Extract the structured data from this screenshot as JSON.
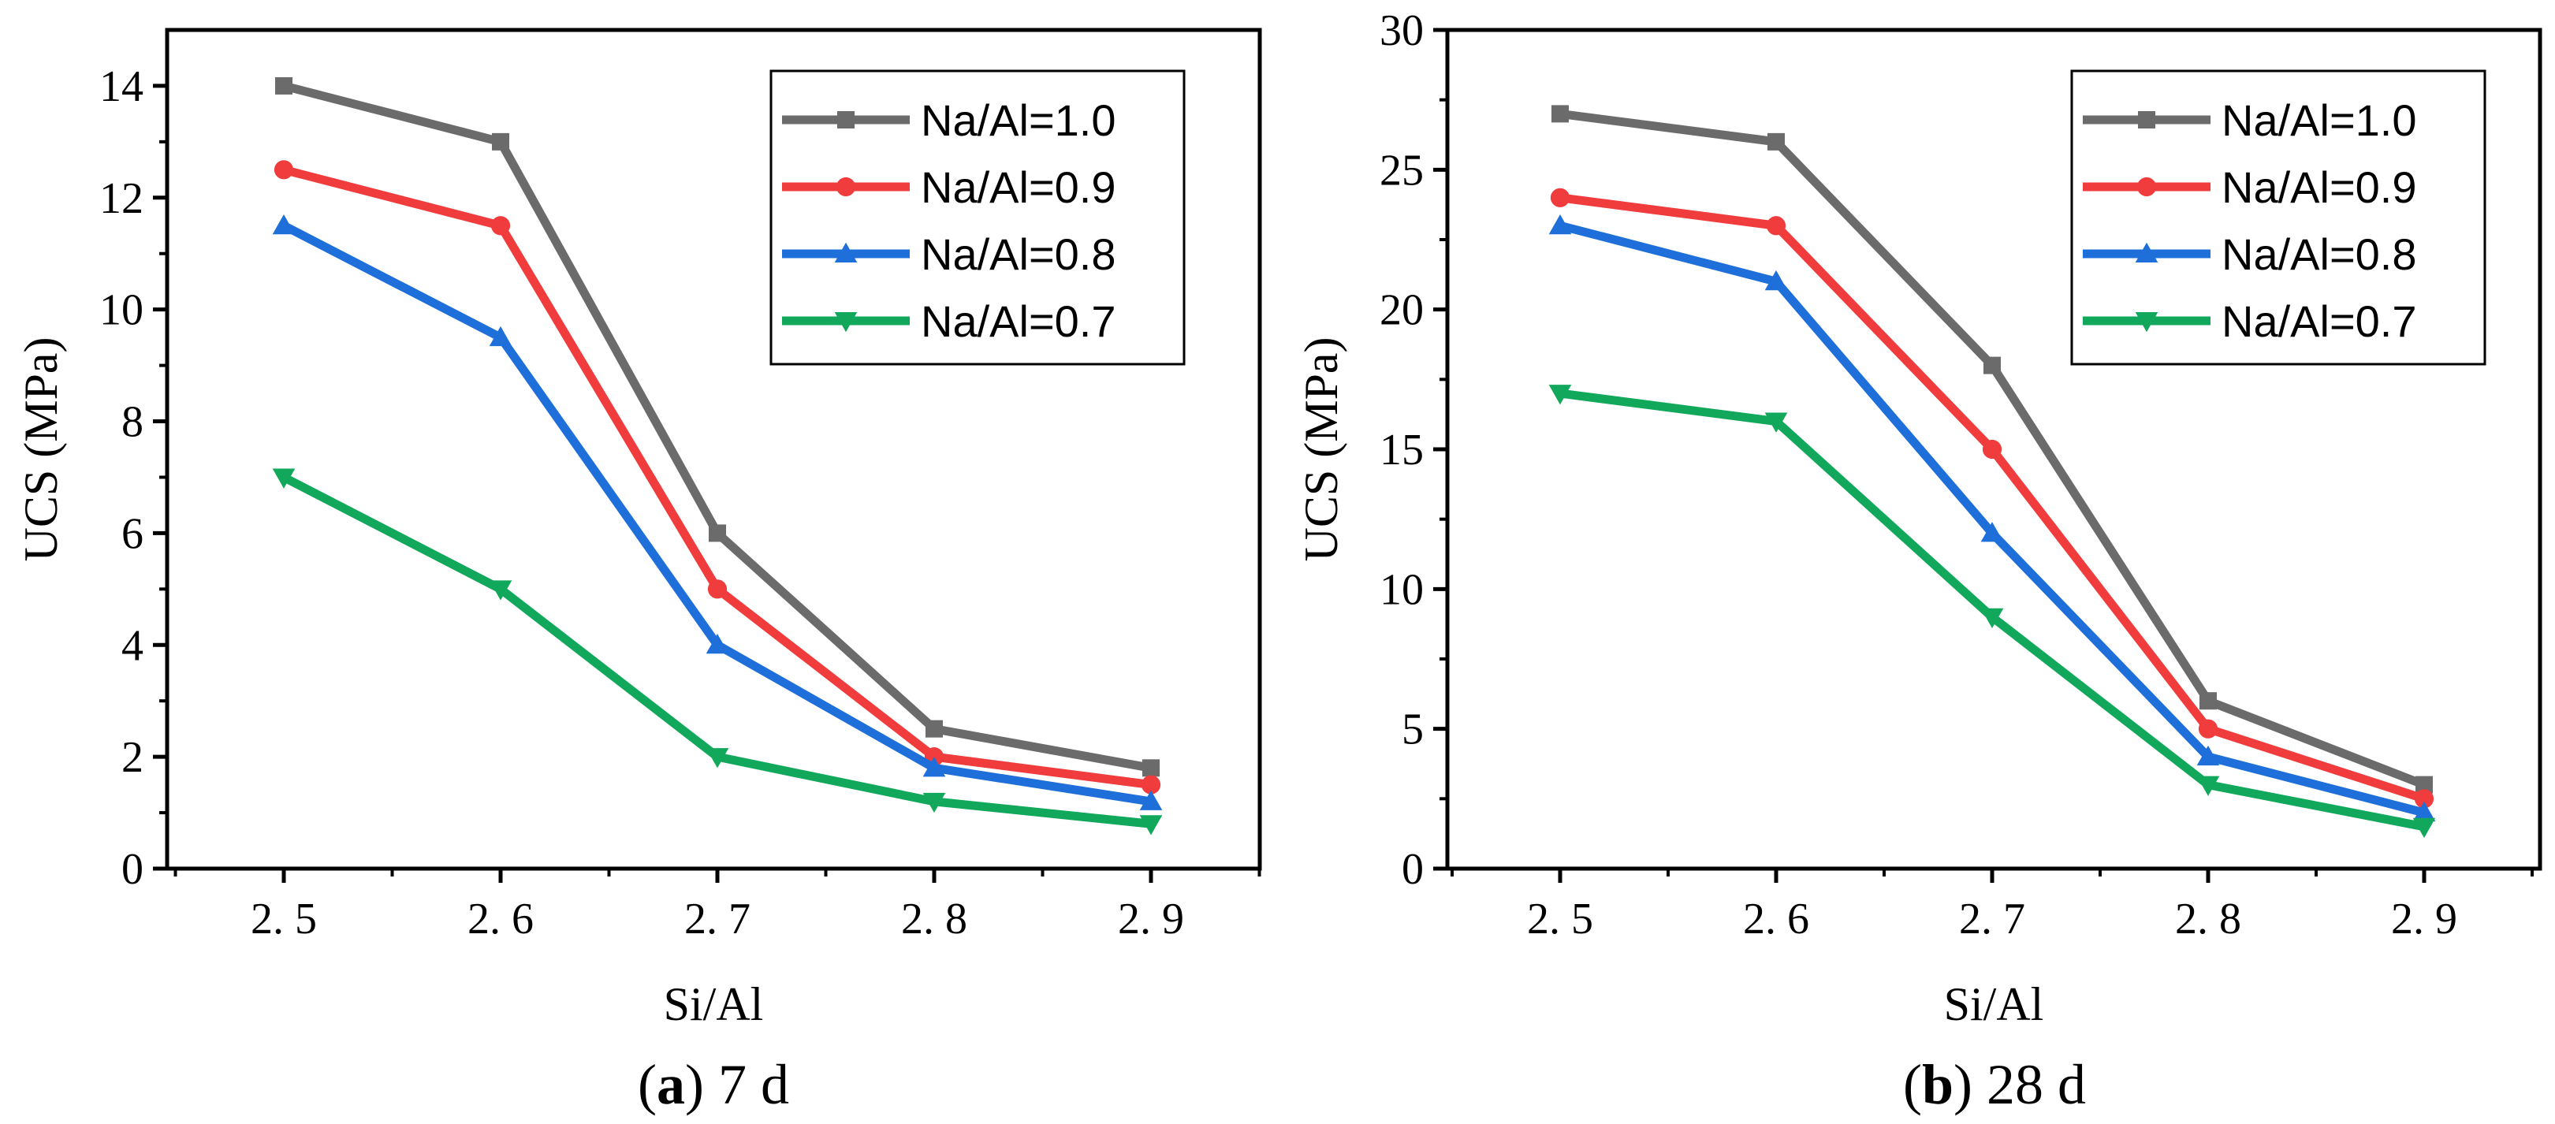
{
  "chart_data": [
    {
      "type": "line",
      "caption_letter": "a",
      "caption_text": "7 d",
      "xlabel": "Si/Al",
      "ylabel": "UCS (MPa)",
      "categories": [
        "2.5",
        "2.6",
        "2.7",
        "2.8",
        "2.9"
      ],
      "x_tick_labels": [
        "2. 5",
        "2. 6",
        "2. 7",
        "2. 8",
        "2. 9"
      ],
      "ylim": [
        0,
        15
      ],
      "yticks": [
        0,
        2,
        4,
        6,
        8,
        10,
        12,
        14
      ],
      "y_tick_labels": [
        "0",
        "2",
        "4",
        "6",
        "8",
        "10",
        "12",
        "14"
      ],
      "legend_position": "top-right",
      "series": [
        {
          "name": "Na/Al=1.0",
          "color": "#6b6b6b",
          "marker": "square",
          "values": [
            14.0,
            13.0,
            6.0,
            2.5,
            1.8
          ]
        },
        {
          "name": "Na/Al=0.9",
          "color": "#f03c3c",
          "marker": "circle",
          "values": [
            12.5,
            11.5,
            5.0,
            2.0,
            1.5
          ]
        },
        {
          "name": "Na/Al=0.8",
          "color": "#1e6fd9",
          "marker": "triangle-up",
          "values": [
            11.5,
            9.5,
            4.0,
            1.8,
            1.2
          ]
        },
        {
          "name": "Na/Al=0.7",
          "color": "#12a85c",
          "marker": "triangle-down",
          "values": [
            7.0,
            5.0,
            2.0,
            1.2,
            0.8
          ]
        }
      ]
    },
    {
      "type": "line",
      "caption_letter": "b",
      "caption_text": "28 d",
      "xlabel": "Si/Al",
      "ylabel": "UCS (MPa)",
      "categories": [
        "2.5",
        "2.6",
        "2.7",
        "2.8",
        "2.9"
      ],
      "x_tick_labels": [
        "2. 5",
        "2. 6",
        "2. 7",
        "2. 8",
        "2. 9"
      ],
      "ylim": [
        0,
        30
      ],
      "yticks": [
        0,
        5,
        10,
        15,
        20,
        25,
        30
      ],
      "y_tick_labels": [
        "0",
        "5",
        "10",
        "15",
        "20",
        "25",
        "30"
      ],
      "legend_position": "top-right",
      "series": [
        {
          "name": "Na/Al=1.0",
          "color": "#6b6b6b",
          "marker": "square",
          "values": [
            27.0,
            26.0,
            18.0,
            6.0,
            3.0
          ]
        },
        {
          "name": "Na/Al=0.9",
          "color": "#f03c3c",
          "marker": "circle",
          "values": [
            24.0,
            23.0,
            15.0,
            5.0,
            2.5
          ]
        },
        {
          "name": "Na/Al=0.8",
          "color": "#1e6fd9",
          "marker": "triangle-up",
          "values": [
            23.0,
            21.0,
            12.0,
            4.0,
            2.0
          ]
        },
        {
          "name": "Na/Al=0.7",
          "color": "#12a85c",
          "marker": "triangle-down",
          "values": [
            17.0,
            16.0,
            9.0,
            3.0,
            1.5
          ]
        }
      ]
    }
  ]
}
